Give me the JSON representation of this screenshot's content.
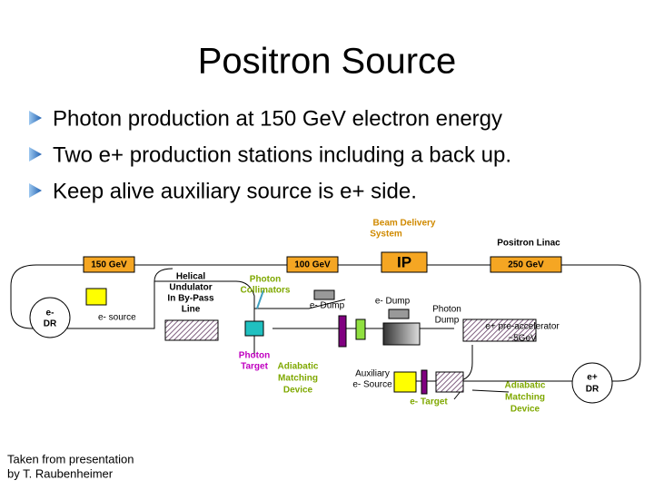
{
  "title": "Positron Source",
  "bullets": [
    "Photon production at 150 GeV electron energy",
    "Two e+ production stations including a back up.",
    "Keep alive auxiliary source is e+ side."
  ],
  "diagram": {
    "beam_delivery_system": [
      "Beam Delivery",
      "System"
    ],
    "positron_linac": "Positron Linac",
    "energy_150": "150 GeV",
    "energy_100": "100 GeV",
    "ip": "IP",
    "energy_250": "250 GeV",
    "electron_dr": [
      "e-",
      "DR"
    ],
    "electron_source": "e- source",
    "helical_undulator": [
      "Helical",
      "Undulator",
      "In By-Pass",
      "Line"
    ],
    "photon_collimators": [
      "Photon",
      "Collimators"
    ],
    "electron_dump_1": "e- Dump",
    "electron_dump_2": "e- Dump",
    "photon_dump": [
      "Photon",
      "Dump"
    ],
    "pre_accelerator": [
      "e+ pre-accelerator",
      "~5GeV"
    ],
    "photon_target": [
      "Photon",
      "Target"
    ],
    "adiabatic_matching_1": [
      "Adiabatic",
      "Matching",
      "Device"
    ],
    "auxiliary_source": [
      "Auxiliary",
      "e- Source"
    ],
    "electron_target": "e- Target",
    "adiabatic_matching_2": [
      "Adiabatic",
      "Matching",
      "Device"
    ],
    "positron_dr": [
      "e+",
      "DR"
    ]
  },
  "footer": [
    "Taken from presentation",
    "by T. Raubenheimer"
  ]
}
